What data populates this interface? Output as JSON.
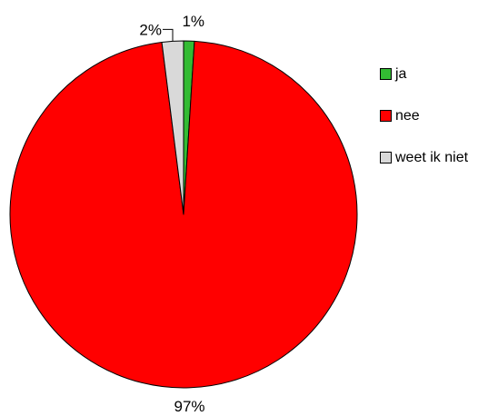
{
  "chart_data": {
    "type": "pie",
    "title": "",
    "categories": [
      "ja",
      "nee",
      "weet ik niet"
    ],
    "values": [
      1,
      97,
      2
    ],
    "data_labels": [
      "1%",
      "97%",
      "2%"
    ],
    "colors": [
      "#33bb33",
      "#ff0000",
      "#d9d9d9"
    ],
    "start_angle": "12 o'clock",
    "direction": "clockwise",
    "legend": {
      "position": "right",
      "entries": [
        "ja",
        "nee",
        "weet ik niet"
      ]
    }
  }
}
